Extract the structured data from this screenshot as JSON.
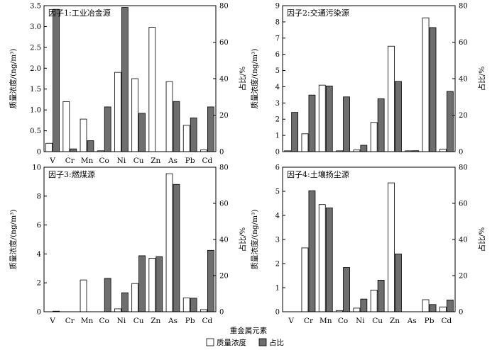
{
  "legend": {
    "items": [
      {
        "label": "质量浓度",
        "color": "#ffffff"
      },
      {
        "label": "占比",
        "color": "#6e6e6e"
      }
    ],
    "placement": "bottom-center"
  },
  "colors": {
    "concentration": "#ffffff",
    "share": "#6e6e6e",
    "stroke": "#000000"
  },
  "chart_data": [
    {
      "type": "bar",
      "title": "因子1:工业冶金源",
      "categories": [
        "V",
        "Cr",
        "Mn",
        "Co",
        "Ni",
        "Cu",
        "Zn",
        "As",
        "Pb",
        "Cd"
      ],
      "xlabel": "",
      "ylabel": "质量浓度/(ng/m³)",
      "y2label": "占比/%",
      "ylim": [
        0,
        3.5
      ],
      "y2lim": [
        0,
        80
      ],
      "yticks": [
        "0",
        "0.5",
        "1.0",
        "1.5",
        "2.0",
        "2.5",
        "3.0",
        "3.5"
      ],
      "y2ticks": [
        "0",
        "20",
        "40",
        "60",
        "80"
      ],
      "series": [
        {
          "name": "质量浓度",
          "axis": "left",
          "values": [
            0.2,
            1.2,
            0.78,
            0.02,
            1.9,
            1.75,
            2.98,
            1.68,
            0.63,
            0.04
          ]
        },
        {
          "name": "占比",
          "axis": "right",
          "values": [
            78,
            1.5,
            6,
            24.5,
            79,
            21,
            0,
            27.5,
            18.5,
            24.5
          ]
        }
      ]
    },
    {
      "type": "bar",
      "title": "因子2:交通污染源",
      "categories": [
        "V",
        "Cr",
        "Mn",
        "Co",
        "Ni",
        "Cu",
        "Zn",
        "As",
        "Pb",
        "Cd"
      ],
      "xlabel": "",
      "ylabel": "质量浓度/(ng/m³)",
      "y2label": "占比/%",
      "ylim": [
        0,
        9
      ],
      "y2lim": [
        0,
        80
      ],
      "yticks": [
        "0",
        "1",
        "2",
        "3",
        "4",
        "5",
        "6",
        "7",
        "8",
        "9"
      ],
      "y2ticks": [
        "0",
        "20",
        "40",
        "60",
        "80"
      ],
      "series": [
        {
          "name": "质量浓度",
          "axis": "left",
          "values": [
            0.05,
            1.1,
            4.1,
            0.05,
            0.1,
            1.8,
            6.5,
            0.05,
            8.25,
            0.15
          ]
        },
        {
          "name": "占比",
          "axis": "right",
          "values": [
            21.5,
            31,
            36,
            30,
            3.5,
            29,
            38.5,
            0.5,
            68,
            33
          ]
        }
      ]
    },
    {
      "type": "bar",
      "title": "因子3:燃煤源",
      "categories": [
        "V",
        "Cr",
        "Mn",
        "Co",
        "Ni",
        "Cu",
        "Zn",
        "As",
        "Pb",
        "Cd"
      ],
      "xlabel": "",
      "ylabel": "质量浓度/(ng/m³)",
      "y2label": "占比/%",
      "ylim": [
        0,
        10
      ],
      "y2lim": [
        0,
        80
      ],
      "yticks": [
        "0",
        "2",
        "4",
        "6",
        "8",
        "10"
      ],
      "y2ticks": [
        "0",
        "20",
        "40",
        "60",
        "80"
      ],
      "series": [
        {
          "name": "质量浓度",
          "axis": "left",
          "values": [
            0,
            0,
            2.2,
            0,
            0.2,
            1.95,
            3.7,
            9.55,
            0.95,
            0.15
          ]
        },
        {
          "name": "占比",
          "axis": "right",
          "values": [
            0.3,
            0,
            0,
            18.5,
            10.5,
            31,
            30.5,
            70.5,
            7.5,
            34
          ]
        }
      ]
    },
    {
      "type": "bar",
      "title": "因子4:土壤扬尘源",
      "categories": [
        "V",
        "Cr",
        "Mn",
        "Co",
        "Ni",
        "Cu",
        "Zn",
        "As",
        "Pb",
        "Cd"
      ],
      "xlabel": "重金属元素",
      "ylabel": "质量浓度/(ng/m³)",
      "y2label": "占比/%",
      "ylim": [
        0,
        6
      ],
      "y2lim": [
        0,
        80
      ],
      "yticks": [
        "0",
        "1",
        "2",
        "3",
        "4",
        "5",
        "6"
      ],
      "y2ticks": [
        "0",
        "20",
        "40",
        "60",
        "80"
      ],
      "series": [
        {
          "name": "质量浓度",
          "axis": "left",
          "values": [
            0,
            2.65,
            4.45,
            0.05,
            0.15,
            0.9,
            5.35,
            0,
            0.5,
            0.2
          ]
        },
        {
          "name": "占比",
          "axis": "right",
          "values": [
            0,
            67,
            57.5,
            24.5,
            7,
            17.5,
            32,
            0,
            4,
            6.5
          ]
        }
      ]
    }
  ]
}
